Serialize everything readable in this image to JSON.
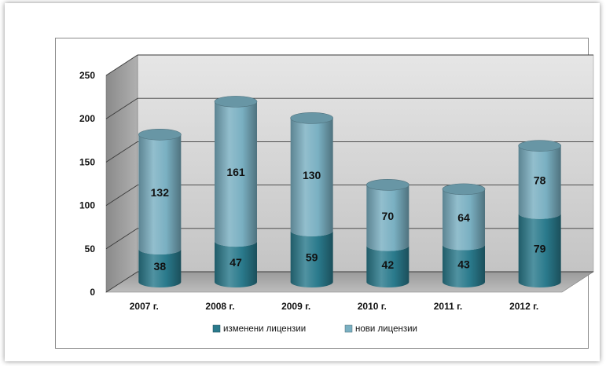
{
  "chart_data": {
    "type": "bar",
    "style": "stacked-3d-cylinder",
    "categories": [
      "2007 г.",
      "2008 г.",
      "2009 г.",
      "2010 г.",
      "2011 г.",
      "2012 г."
    ],
    "series": [
      {
        "name": "изменени лицензии",
        "values": [
          38,
          47,
          59,
          42,
          43,
          79
        ],
        "color": "#2a7a8c"
      },
      {
        "name": "нови лицензии",
        "values": [
          132,
          161,
          130,
          70,
          64,
          78
        ],
        "color": "#7ab0c2"
      }
    ],
    "ylim": [
      0,
      250
    ],
    "yticks": [
      0,
      50,
      100,
      150,
      200,
      250
    ],
    "grid": true,
    "legend_position": "bottom",
    "title": "",
    "xlabel": "",
    "ylabel": ""
  }
}
